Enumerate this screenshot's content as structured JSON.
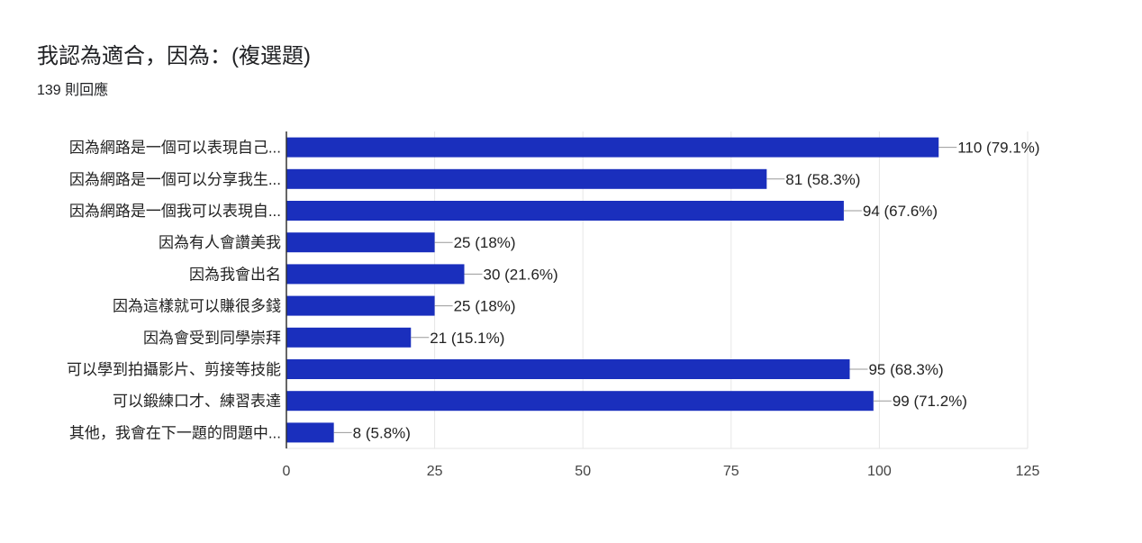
{
  "chart_data": {
    "type": "bar",
    "orientation": "horizontal",
    "title": "我認為適合，因為：(複選題)",
    "subtitle": "139 則回應",
    "categories": [
      "因為網路是一個可以表現自己...",
      "因為網路是一個可以分享我生...",
      "因為網路是一個我可以表現自...",
      "因為有人會讚美我",
      "因為我會出名",
      "因為這樣就可以賺很多錢",
      "因為會受到同學崇拜",
      "可以學到拍攝影片、剪接等技能",
      "可以鍛練口才、練習表達",
      "其他，我會在下一題的問題中..."
    ],
    "values": [
      110,
      81,
      94,
      25,
      30,
      25,
      21,
      95,
      99,
      8
    ],
    "data_labels": [
      "110 (79.1%)",
      "81 (58.3%)",
      "94 (67.6%)",
      "25 (18%)",
      "30 (21.6%)",
      "25 (18%)",
      "21 (15.1%)",
      "95 (68.3%)",
      "99 (71.2%)",
      "8 (5.8%)"
    ],
    "xlim": [
      0,
      125
    ],
    "x_ticks": [
      "0",
      "25",
      "50",
      "75",
      "100",
      "125"
    ],
    "xlabel": "",
    "ylabel": "",
    "grid": true,
    "bar_color": "#1a2fbd"
  }
}
